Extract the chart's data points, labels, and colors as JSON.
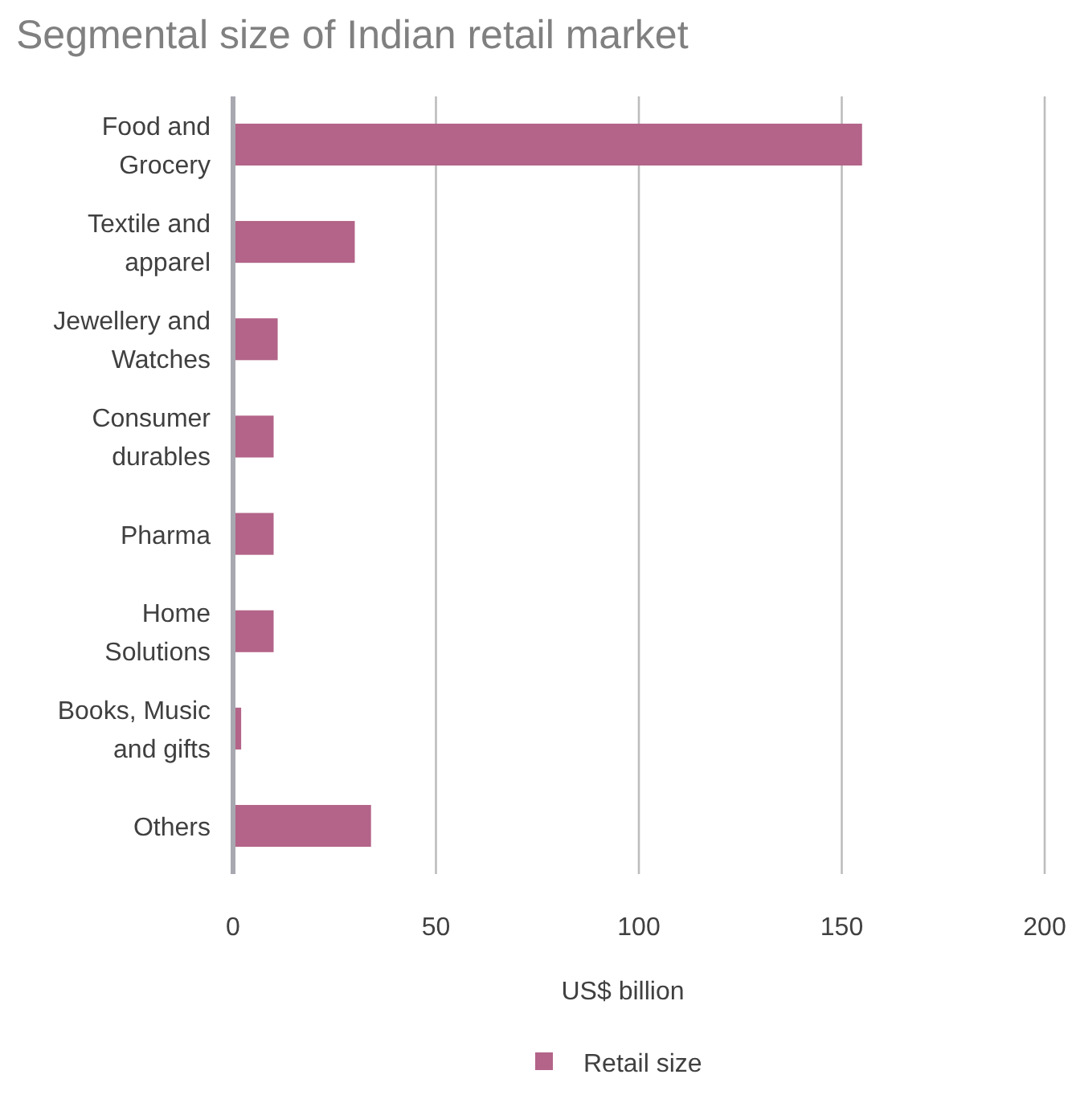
{
  "chart_data": {
    "type": "bar",
    "orientation": "horizontal",
    "title": "Segmental size of Indian retail market",
    "xlabel": "US$ billion",
    "categories": [
      "Food and Grocery",
      "Textile and apparel",
      "Jewellery and Watches",
      "Consumer durables",
      "Pharma",
      "Home Solutions",
      "Books, Music and gifts",
      "Others"
    ],
    "series": [
      {
        "name": "Retail size",
        "color": "#b36488",
        "values": [
          155,
          30,
          11,
          10,
          10,
          10,
          2,
          34
        ]
      }
    ],
    "xlim": [
      0,
      200
    ],
    "xticks": [
      0,
      50,
      100,
      150,
      200
    ],
    "grid": "x",
    "legend": "bottom"
  }
}
